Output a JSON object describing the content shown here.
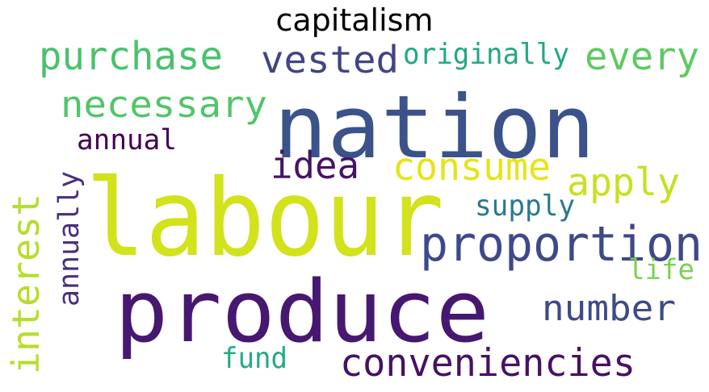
{
  "title": "capitalism",
  "words": [
    {
      "text": "labour",
      "color": "#d2e21b"
    },
    {
      "text": "produce",
      "color": "#46186f"
    },
    {
      "text": "nation",
      "color": "#3b528b"
    },
    {
      "text": "proportion",
      "color": "#3e4989"
    },
    {
      "text": "purchase",
      "color": "#4ac16d"
    },
    {
      "text": "vested",
      "color": "#414487"
    },
    {
      "text": "originally",
      "color": "#22a884"
    },
    {
      "text": "every",
      "color": "#5ec962"
    },
    {
      "text": "necessary",
      "color": "#52c569"
    },
    {
      "text": "annual",
      "color": "#440154"
    },
    {
      "text": "idea",
      "color": "#471365"
    },
    {
      "text": "consume",
      "color": "#e5e419"
    },
    {
      "text": "apply",
      "color": "#c8e020"
    },
    {
      "text": "supply",
      "color": "#2a788e"
    },
    {
      "text": "interest",
      "color": "#b5de2b"
    },
    {
      "text": "annually",
      "color": "#472f7d"
    },
    {
      "text": "number",
      "color": "#3e4a89"
    },
    {
      "text": "life",
      "color": "#7ad151"
    },
    {
      "text": "fund",
      "color": "#25ab82"
    },
    {
      "text": "conveniencies",
      "color": "#471164"
    }
  ]
}
